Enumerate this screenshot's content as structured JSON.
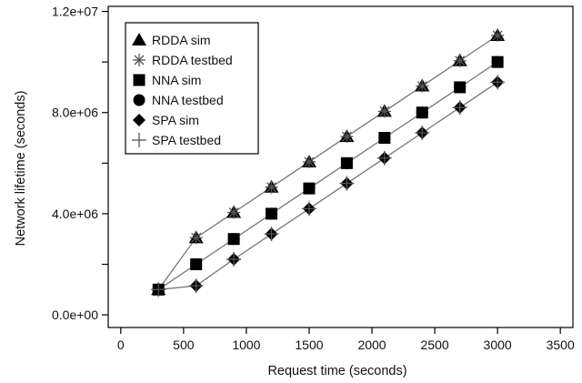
{
  "chart_data": {
    "type": "scatter",
    "title": "",
    "xlabel": "Request time (seconds)",
    "ylabel": "Network lifetime (seconds)",
    "xlim": [
      -100,
      3600
    ],
    "ylim": [
      -500000,
      12200000
    ],
    "x_ticks": [
      0,
      500,
      1000,
      1500,
      2000,
      2500,
      3000,
      3500
    ],
    "x_tick_labels": [
      "0",
      "500",
      "1000",
      "1500",
      "2000",
      "2500",
      "3000",
      "3500"
    ],
    "y_ticks": [
      0,
      4000000,
      8000000,
      12000000
    ],
    "y_tick_labels": [
      "0.0e+00",
      "4.0e+06",
      "8.0e+06",
      "1.2e+07"
    ],
    "y_minor_ticks": [
      2000000,
      6000000,
      10000000
    ],
    "grid": false,
    "legend_position": "top-left",
    "x": [
      300,
      600,
      900,
      1200,
      1500,
      1800,
      2100,
      2400,
      2700,
      3000
    ],
    "series": [
      {
        "name": "RDDA sim",
        "marker": "triangle",
        "line": true,
        "values": [
          1000000,
          3050000,
          4050000,
          5050000,
          6050000,
          7050000,
          8050000,
          9050000,
          10050000,
          11050000
        ]
      },
      {
        "name": "RDDA testbed",
        "marker": "asterisk",
        "line": false,
        "values": [
          1000000,
          3050000,
          4050000,
          5050000,
          6050000,
          7050000,
          8050000,
          9050000,
          10050000,
          11050000
        ]
      },
      {
        "name": "NNA sim",
        "marker": "square",
        "line": true,
        "values": [
          1000000,
          2000000,
          3000000,
          4000000,
          5000000,
          6000000,
          7000000,
          8000000,
          9000000,
          10000000
        ]
      },
      {
        "name": "NNA testbed",
        "marker": "circle",
        "line": false,
        "values": [
          1000000,
          2000000,
          3000000,
          4000000,
          5000000,
          6000000,
          7000000,
          8000000,
          9000000,
          10000000
        ]
      },
      {
        "name": "SPA sim",
        "marker": "diamond",
        "line": true,
        "values": [
          1000000,
          1150000,
          2200000,
          3200000,
          4200000,
          5200000,
          6200000,
          7200000,
          8200000,
          9200000
        ]
      },
      {
        "name": "SPA testbed",
        "marker": "plus",
        "line": false,
        "values": [
          1000000,
          1150000,
          2200000,
          3200000,
          4200000,
          5200000,
          6200000,
          7200000,
          8200000,
          9200000
        ]
      }
    ]
  }
}
